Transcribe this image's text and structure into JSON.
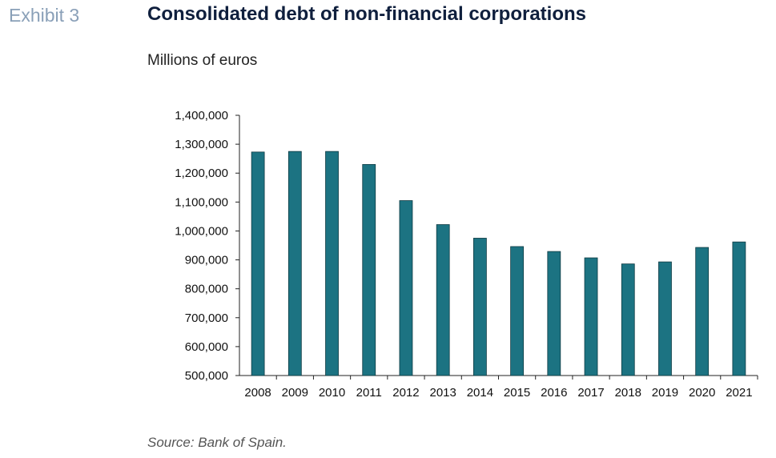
{
  "header": {
    "exhibit": "Exhibit 3",
    "title": "Consolidated debt of non-financial corporations",
    "units": "Millions of euros"
  },
  "footer": {
    "source": "Source: Bank of Spain."
  },
  "colors": {
    "bar": "#1c7382",
    "exhibit": "#8aa0b8",
    "title": "#0f1f3d"
  },
  "chart_data": {
    "type": "bar",
    "title": "Consolidated debt of non-financial corporations",
    "ylabel": "Millions of euros",
    "xlabel": "",
    "categories": [
      "2008",
      "2009",
      "2010",
      "2011",
      "2012",
      "2013",
      "2014",
      "2015",
      "2016",
      "2017",
      "2018",
      "2019",
      "2020",
      "2021"
    ],
    "values": [
      1273000,
      1275000,
      1275000,
      1230000,
      1105000,
      1022000,
      975000,
      946000,
      929000,
      907000,
      886000,
      893000,
      943000,
      962000
    ],
    "yticks": [
      "500,000",
      "600,000",
      "700,000",
      "800,000",
      "900,000",
      "1,000,000",
      "1,100,000",
      "1,200,000",
      "1,300,000",
      "1,400,000"
    ],
    "ylim": [
      500000,
      1400000
    ],
    "grid": false,
    "legend": "none"
  }
}
